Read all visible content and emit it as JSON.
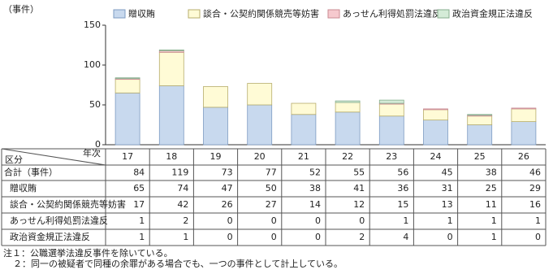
{
  "chart_data": {
    "type": "bar",
    "stacked": true,
    "y_label": "（事件）",
    "categories": [
      "17",
      "18",
      "19",
      "20",
      "21",
      "22",
      "23",
      "24",
      "25",
      "26"
    ],
    "series": [
      {
        "name": "贈収賄",
        "color": "#c8d9ee",
        "values": [
          65,
          74,
          47,
          50,
          38,
          41,
          36,
          31,
          25,
          29
        ]
      },
      {
        "name": "談合・公契約関係競売等妨害",
        "color": "#fffbd6",
        "values": [
          17,
          42,
          26,
          27,
          14,
          12,
          15,
          13,
          11,
          16
        ]
      },
      {
        "name": "あっせん利得処罰法違反",
        "color": "#f6c9ce",
        "values": [
          1,
          2,
          0,
          0,
          0,
          0,
          1,
          1,
          1,
          1
        ]
      },
      {
        "name": "政治資金規正法違反",
        "color": "#d4ebd7",
        "values": [
          1,
          1,
          0,
          0,
          0,
          2,
          4,
          0,
          1,
          0
        ]
      }
    ],
    "ylim": [
      0,
      150
    ],
    "yticks": [
      0,
      50,
      100,
      150
    ],
    "grid": false,
    "table_corner_row": "区分",
    "table_corner_col": "年次",
    "total_label": "合計（事件）",
    "totals": [
      84,
      119,
      73,
      77,
      52,
      55,
      56,
      45,
      38,
      46
    ]
  },
  "notes": [
    "注１：公職選挙法違反事件を除いている。",
    "２：同一の被疑者で同種の余罪がある場合でも、一つの事件として計上している。"
  ]
}
